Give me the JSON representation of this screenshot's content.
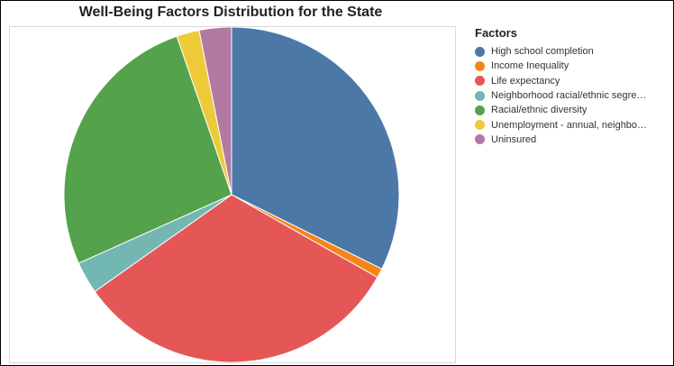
{
  "chart_data": {
    "type": "pie",
    "title": "Well-Being Factors Distribution for the State",
    "legend_title": "Factors",
    "legend_position": "right",
    "start_angle_deg": 0,
    "direction": "clockwise",
    "slices": [
      {
        "label": "High school completion",
        "value": 32.3,
        "color": "#4c78a8"
      },
      {
        "label": "Income Inequality",
        "value": 0.9,
        "color": "#f58518"
      },
      {
        "label": "Life expectancy",
        "value": 32.0,
        "color": "#e45756"
      },
      {
        "label": "Neighborhood racial/ethnic segre…",
        "value": 3.1,
        "color": "#72b7b2"
      },
      {
        "label": "Racial/ethnic diversity",
        "value": 26.4,
        "color": "#54a24b"
      },
      {
        "label": "Unemployment - annual, neighbo…",
        "value": 2.2,
        "color": "#eeca3b"
      },
      {
        "label": "Uninsured",
        "value": 3.1,
        "color": "#b279a2"
      }
    ]
  }
}
